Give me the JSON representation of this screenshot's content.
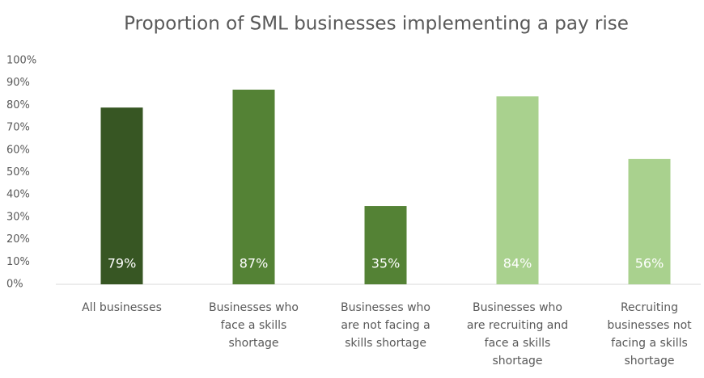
{
  "chart_data": {
    "type": "bar",
    "title": "Proportion of SML businesses implementing a pay rise",
    "categories": [
      "All businesses",
      "Businesses who\nface a skills\nshortage",
      "Businesses who\nare not facing a\nskills shortage",
      "Businesses who\nare recruiting and\nface a skills\nshortage",
      "Recruiting\nbusinesses not\nfacing a skills\nshortage"
    ],
    "values": [
      79,
      87,
      35,
      84,
      56
    ],
    "value_labels": [
      "79%",
      "87%",
      "35%",
      "84%",
      "56%"
    ],
    "colors": [
      "#375623",
      "#548235",
      "#548235",
      "#a9d18e",
      "#a9d18e"
    ],
    "ylim": [
      0,
      100
    ],
    "yticks": [
      {
        "value": 0,
        "label": "0%"
      },
      {
        "value": 10,
        "label": "10%"
      },
      {
        "value": 20,
        "label": "20%"
      },
      {
        "value": 30,
        "label": "30%"
      },
      {
        "value": 40,
        "label": "40%"
      },
      {
        "value": 50,
        "label": "50%"
      },
      {
        "value": 60,
        "label": "60%"
      },
      {
        "value": 70,
        "label": "70%"
      },
      {
        "value": 80,
        "label": "80%"
      },
      {
        "value": 90,
        "label": "90%"
      },
      {
        "value": 100,
        "label": "100%"
      }
    ],
    "grid": false
  }
}
